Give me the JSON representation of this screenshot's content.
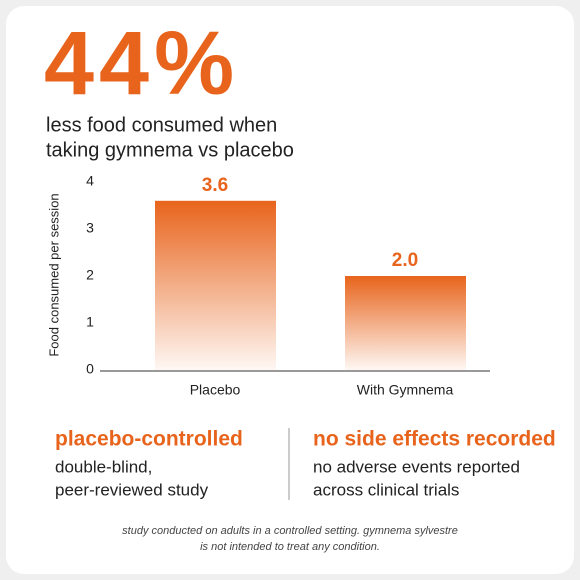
{
  "headline": "44%",
  "subtitle": [
    "less food consumed when",
    "taking gymnema vs placebo"
  ],
  "chart_data": {
    "type": "bar",
    "y_label": "Food consumed per session",
    "categories": [
      "Placebo",
      "With Gymnema"
    ],
    "values": [
      3.6,
      2.0
    ],
    "value_labels": [
      "3.6",
      "2.0"
    ],
    "color": "#e8641c",
    "ylim": [
      0,
      4
    ],
    "yticks": [
      0,
      1,
      2,
      3,
      4
    ]
  },
  "features": [
    {
      "title": "placebo-controlled",
      "lines": [
        "double-blind,",
        "peer-reviewed study"
      ]
    },
    {
      "title": "no side effects recorded",
      "lines": [
        "no adverse events reported",
        "across clinical trials"
      ]
    }
  ],
  "footnote": [
    "study conducted on adults in a controlled setting. gymnema sylvestre",
    "is not intended to treat any condition."
  ]
}
